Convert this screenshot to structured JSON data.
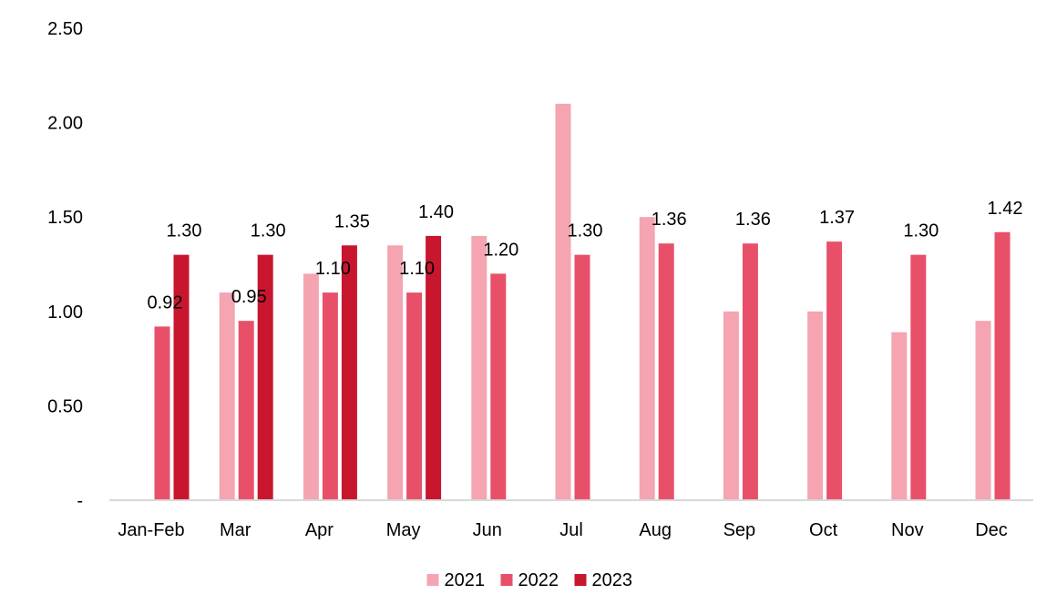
{
  "chart_data": {
    "type": "bar",
    "categories": [
      "Jan-Feb",
      "Mar",
      "Apr",
      "May",
      "Jun",
      "Jul",
      "Aug",
      "Sep",
      "Oct",
      "Nov",
      "Dec"
    ],
    "series": [
      {
        "name": "2021",
        "color": "#F4A5B1",
        "values": [
          null,
          1.1,
          1.2,
          1.35,
          1.4,
          2.1,
          1.5,
          1.0,
          1.0,
          0.89,
          0.95
        ],
        "labels": [
          null,
          null,
          null,
          null,
          null,
          null,
          null,
          null,
          null,
          null,
          null
        ]
      },
      {
        "name": "2022",
        "color": "#E8506A",
        "values": [
          0.92,
          0.95,
          1.1,
          1.1,
          1.2,
          1.3,
          1.36,
          1.36,
          1.37,
          1.3,
          1.42
        ],
        "labels": [
          "0.92",
          "0.95",
          "1.10",
          "1.10",
          "1.20",
          "1.30",
          "1.36",
          "1.36",
          "1.37",
          "1.30",
          "1.42"
        ]
      },
      {
        "name": "2023",
        "color": "#C8162F",
        "values": [
          1.3,
          1.3,
          1.35,
          1.4,
          null,
          null,
          null,
          null,
          null,
          null,
          null
        ],
        "labels": [
          "1.30",
          "1.30",
          "1.35",
          "1.40",
          null,
          null,
          null,
          null,
          null,
          null,
          null
        ]
      }
    ],
    "y_ticks": [
      {
        "value": 0,
        "label": "-"
      },
      {
        "value": 0.5,
        "label": "0.50"
      },
      {
        "value": 1.0,
        "label": "1.00"
      },
      {
        "value": 1.5,
        "label": "1.50"
      },
      {
        "value": 2.0,
        "label": "2.00"
      },
      {
        "value": 2.5,
        "label": "2.50"
      }
    ],
    "ylim": [
      0,
      2.5
    ],
    "grid": false,
    "legend_position": "bottom-center",
    "axis_color": "#D9D9D9"
  }
}
